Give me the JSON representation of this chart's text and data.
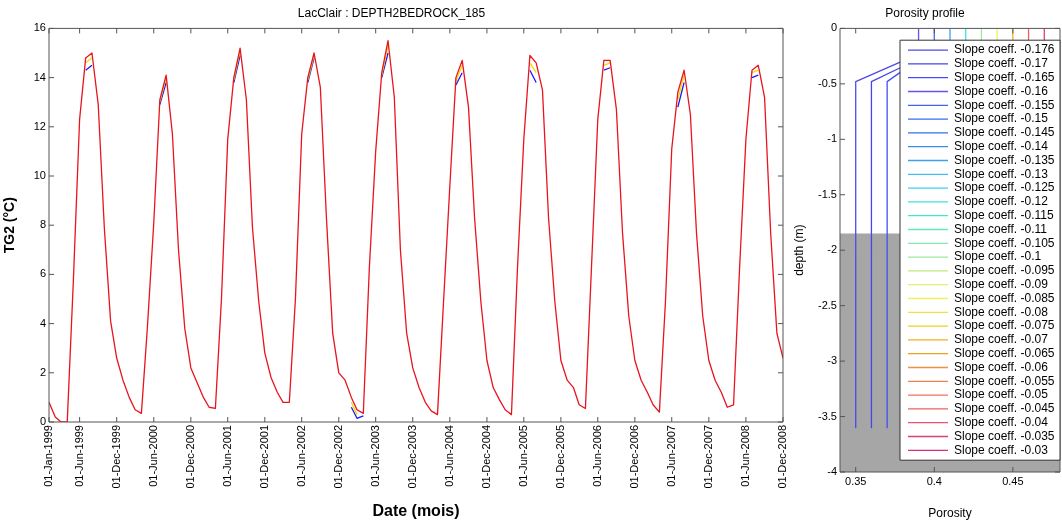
{
  "chart_data": [
    {
      "type": "line",
      "title": "LacClair : DEPTH2BEDROCK_185",
      "xlabel": "Date (mois)",
      "ylabel": "TG2 (°C)",
      "marker": "none",
      "line_style": "solid",
      "x": [
        "1999-01",
        "1999-02",
        "1999-03",
        "1999-04",
        "1999-05",
        "1999-06",
        "1999-07",
        "1999-08",
        "1999-09",
        "1999-10",
        "1999-11",
        "1999-12",
        "2000-01",
        "2000-02",
        "2000-03",
        "2000-04",
        "2000-05",
        "2000-06",
        "2000-07",
        "2000-08",
        "2000-09",
        "2000-10",
        "2000-11",
        "2000-12",
        "2001-01",
        "2001-02",
        "2001-03",
        "2001-04",
        "2001-05",
        "2001-06",
        "2001-07",
        "2001-08",
        "2001-09",
        "2001-10",
        "2001-11",
        "2001-12",
        "2002-01",
        "2002-02",
        "2002-03",
        "2002-04",
        "2002-05",
        "2002-06",
        "2002-07",
        "2002-08",
        "2002-09",
        "2002-10",
        "2002-11",
        "2002-12",
        "2003-01",
        "2003-02",
        "2003-03",
        "2003-04",
        "2003-05",
        "2003-06",
        "2003-07",
        "2003-08",
        "2003-09",
        "2003-10",
        "2003-11",
        "2003-12",
        "2004-01",
        "2004-02",
        "2004-03",
        "2004-04",
        "2004-05",
        "2004-06",
        "2004-07",
        "2004-08",
        "2004-09",
        "2004-10",
        "2004-11",
        "2004-12",
        "2005-01",
        "2005-02",
        "2005-03",
        "2005-04",
        "2005-05",
        "2005-06",
        "2005-07",
        "2005-08",
        "2005-09",
        "2005-10",
        "2005-11",
        "2005-12",
        "2006-01",
        "2006-02",
        "2006-03",
        "2006-04",
        "2006-05",
        "2006-06",
        "2006-07",
        "2006-08",
        "2006-09",
        "2006-10",
        "2006-11",
        "2006-12",
        "2007-01",
        "2007-02",
        "2007-03",
        "2007-04",
        "2007-05",
        "2007-06",
        "2007-07",
        "2007-08",
        "2007-09",
        "2007-10",
        "2007-11",
        "2007-12",
        "2008-01",
        "2008-02",
        "2008-03",
        "2008-04",
        "2008-05",
        "2008-06",
        "2008-07",
        "2008-08",
        "2008-09",
        "2008-10",
        "2008-11",
        "2008-12"
      ],
      "series": [
        {
          "color": "#e8141e",
          "values": [
            0.8,
            0.2,
            0,
            0,
            5.7,
            12.3,
            14.8,
            15.0,
            12.9,
            7.9,
            4.1,
            2.6,
            1.7,
            1.0,
            0.5,
            0.35,
            3.9,
            8.1,
            13.1,
            14.1,
            11.7,
            7.0,
            3.8,
            2.2,
            1.6,
            1.0,
            0.6,
            0.55,
            5.0,
            11.5,
            14.0,
            15.2,
            13.1,
            7.9,
            4.9,
            2.8,
            1.8,
            1.2,
            0.8,
            0.8,
            5.0,
            11.7,
            14.0,
            15.0,
            13.6,
            8.3,
            3.6,
            2.0,
            1.7,
            1.0,
            0.5,
            0.35,
            6.3,
            11.0,
            14.2,
            15.5,
            13.2,
            7.0,
            3.6,
            2.2,
            1.4,
            0.8,
            0.45,
            0.3,
            4.9,
            9.6,
            14.0,
            14.7,
            12.8,
            8.3,
            4.9,
            2.5,
            1.4,
            0.9,
            0.5,
            0.3,
            6.3,
            11.5,
            14.9,
            14.6,
            13.5,
            8.3,
            4.9,
            2.5,
            1.7,
            1.4,
            0.7,
            0.55,
            6.3,
            12.3,
            14.7,
            14.7,
            12.7,
            7.7,
            4.3,
            2.5,
            1.7,
            1.2,
            0.7,
            0.4,
            4.9,
            11.1,
            13.4,
            14.3,
            12.5,
            7.7,
            4.3,
            2.5,
            1.7,
            1.2,
            0.6,
            0.7,
            6.3,
            11.5,
            14.3,
            14.5,
            13.2,
            7.7,
            3.6,
            2.6
          ]
        },
        {
          "color": "#f5d800",
          "values": [
            null,
            null,
            null,
            null,
            null,
            null,
            14.6,
            14.8,
            null,
            null,
            null,
            null,
            null,
            null,
            null,
            null,
            null,
            null,
            13.0,
            14.0,
            null,
            null,
            null,
            null,
            null,
            null,
            null,
            null,
            null,
            null,
            13.9,
            15.1,
            null,
            null,
            null,
            null,
            null,
            null,
            null,
            null,
            null,
            null,
            13.9,
            14.9,
            null,
            null,
            null,
            null,
            null,
            0.8,
            0.3,
            null,
            null,
            null,
            14.1,
            15.3,
            null,
            null,
            null,
            null,
            null,
            null,
            null,
            null,
            null,
            null,
            13.85,
            14.5,
            null,
            null,
            null,
            null,
            null,
            null,
            null,
            null,
            null,
            null,
            14.6,
            14.2,
            null,
            null,
            null,
            null,
            null,
            null,
            null,
            null,
            null,
            null,
            14.5,
            14.6,
            null,
            null,
            null,
            null,
            null,
            null,
            null,
            null,
            null,
            null,
            13.1,
            14.1,
            null,
            null,
            null,
            null,
            null,
            null,
            null,
            null,
            null,
            null,
            14.2,
            14.3,
            null,
            null,
            null,
            null
          ]
        },
        {
          "color": "#1a1aff",
          "values": [
            null,
            null,
            null,
            null,
            null,
            null,
            14.3,
            14.5,
            null,
            null,
            null,
            null,
            null,
            null,
            null,
            null,
            null,
            null,
            12.9,
            13.8,
            null,
            null,
            null,
            null,
            null,
            null,
            null,
            null,
            null,
            null,
            13.8,
            14.9,
            null,
            null,
            null,
            null,
            null,
            null,
            null,
            null,
            null,
            null,
            13.8,
            14.8,
            null,
            null,
            null,
            null,
            null,
            0.6,
            0.15,
            0.25,
            null,
            null,
            14.0,
            15.0,
            null,
            null,
            null,
            null,
            null,
            null,
            null,
            null,
            null,
            null,
            13.7,
            14.2,
            null,
            null,
            null,
            null,
            null,
            null,
            null,
            null,
            null,
            null,
            14.3,
            13.8,
            null,
            null,
            null,
            null,
            null,
            null,
            null,
            null,
            null,
            null,
            14.3,
            14.4,
            null,
            null,
            null,
            null,
            null,
            null,
            null,
            null,
            null,
            null,
            12.8,
            13.8,
            null,
            null,
            null,
            null,
            null,
            null,
            null,
            null,
            null,
            null,
            14.0,
            14.1,
            null,
            null,
            null,
            null
          ]
        }
      ],
      "xlim": [
        "1999-01-01",
        "2008-12-01"
      ],
      "xticks": [
        {
          "value": "1999-01-01",
          "label": "01-Jan-1999"
        },
        {
          "value": "1999-06-01",
          "label": "01-Jun-1999"
        },
        {
          "value": "1999-12-01",
          "label": "01-Dec-1999"
        },
        {
          "value": "2000-06-01",
          "label": "01-Jun-2000"
        },
        {
          "value": "2000-12-01",
          "label": "01-Dec-2000"
        },
        {
          "value": "2001-06-01",
          "label": "01-Jun-2001"
        },
        {
          "value": "2001-12-01",
          "label": "01-Dec-2001"
        },
        {
          "value": "2002-06-01",
          "label": "01-Jun-2002"
        },
        {
          "value": "2002-12-01",
          "label": "01-Dec-2002"
        },
        {
          "value": "2003-06-01",
          "label": "01-Jun-2003"
        },
        {
          "value": "2003-12-01",
          "label": "01-Dec-2003"
        },
        {
          "value": "2004-06-01",
          "label": "01-Jun-2004"
        },
        {
          "value": "2004-12-01",
          "label": "01-Dec-2004"
        },
        {
          "value": "2005-06-01",
          "label": "01-Jun-2005"
        },
        {
          "value": "2005-12-01",
          "label": "01-Dec-2005"
        },
        {
          "value": "2006-06-01",
          "label": "01-Jun-2006"
        },
        {
          "value": "2006-12-01",
          "label": "01-Dec-2006"
        },
        {
          "value": "2007-06-01",
          "label": "01-Jun-2007"
        },
        {
          "value": "2007-12-01",
          "label": "01-Dec-2007"
        },
        {
          "value": "2008-06-01",
          "label": "01-Jun-2008"
        },
        {
          "value": "2008-12-01",
          "label": "01-Dec-2008"
        }
      ],
      "ylim": [
        0,
        16
      ],
      "yticks": [
        0,
        2,
        4,
        6,
        8,
        10,
        12,
        14,
        16
      ]
    },
    {
      "type": "line",
      "title": "Porosity profile",
      "xlabel": "Porosity",
      "ylabel": "depth (m)",
      "marker": "none",
      "line_style": "solid",
      "legend": "right",
      "xlim": [
        0.34,
        0.48
      ],
      "xticks": [
        0.35,
        0.4,
        0.45
      ],
      "ylim": [
        -4,
        0
      ],
      "yticks": [
        0,
        -0.5,
        -1,
        -1.5,
        -2,
        -2.5,
        -3,
        -3.5,
        -4
      ],
      "bands": [
        {
          "axis": "y",
          "from": -4,
          "to": -1.85,
          "color": "#a6a6a6"
        }
      ],
      "series": [
        {
          "name": "Slope coeff. -0.176",
          "color": "#4b4be6",
          "x": [
            0.379,
            0.35,
            0.35
          ],
          "values": [
            -0.3,
            -0.48,
            -3.6
          ]
        },
        {
          "name": "Slope coeff. -0.17",
          "color": "#4646ee",
          "x": [
            0.379,
            0.36,
            0.36
          ],
          "values": [
            -0.35,
            -0.48,
            -3.6
          ]
        },
        {
          "name": "Slope coeff. -0.165",
          "color": "#4050f5",
          "x": [
            0.379,
            0.37,
            0.37
          ],
          "values": [
            -0.39,
            -0.48,
            -3.6
          ]
        },
        {
          "name": "Slope coeff. -0.16",
          "color": "#6a50f0",
          "x": [
            0.39,
            0.39
          ],
          "values": [
            0,
            -0.13
          ]
        },
        {
          "name": "Slope coeff. -0.155",
          "color": "#4060f0"
        },
        {
          "name": "Slope coeff. -0.15",
          "color": "#3a6af0",
          "x": [
            0.4,
            0.4
          ],
          "values": [
            0,
            -0.13
          ]
        },
        {
          "name": "Slope coeff. -0.145",
          "color": "#3070f0"
        },
        {
          "name": "Slope coeff. -0.14",
          "color": "#3a8af0"
        },
        {
          "name": "Slope coeff. -0.135",
          "color": "#40a0f0",
          "x": [
            0.41,
            0.41
          ],
          "values": [
            0,
            -0.13
          ]
        },
        {
          "name": "Slope coeff. -0.13",
          "color": "#40c0f0"
        },
        {
          "name": "Slope coeff. -0.125",
          "color": "#40d0f0"
        },
        {
          "name": "Slope coeff. -0.12",
          "color": "#40e0e0",
          "x": [
            0.42,
            0.42
          ],
          "values": [
            0,
            -0.13
          ]
        },
        {
          "name": "Slope coeff. -0.115",
          "color": "#40e8c8"
        },
        {
          "name": "Slope coeff. -0.11",
          "color": "#60e8c0"
        },
        {
          "name": "Slope coeff. -0.105",
          "color": "#80e8b0"
        },
        {
          "name": "Slope coeff. -0.1",
          "color": "#a0e8a0",
          "x": [
            0.43,
            0.43
          ],
          "values": [
            0,
            -0.13
          ]
        },
        {
          "name": "Slope coeff. -0.095",
          "color": "#c0e880"
        },
        {
          "name": "Slope coeff. -0.09",
          "color": "#e0f070"
        },
        {
          "name": "Slope coeff. -0.085",
          "color": "#f0f060",
          "x": [
            0.44,
            0.44
          ],
          "values": [
            0,
            -0.13
          ]
        },
        {
          "name": "Slope coeff. -0.08",
          "color": "#f0e040"
        },
        {
          "name": "Slope coeff. -0.075",
          "color": "#f0d020"
        },
        {
          "name": "Slope coeff. -0.07",
          "color": "#f0b020",
          "x": [
            0.45,
            0.45
          ],
          "values": [
            0,
            -0.13
          ]
        },
        {
          "name": "Slope coeff. -0.065",
          "color": "#f0a020"
        },
        {
          "name": "Slope coeff. -0.06",
          "color": "#f09040"
        },
        {
          "name": "Slope coeff. -0.055",
          "color": "#f08050"
        },
        {
          "name": "Slope coeff. -0.05",
          "color": "#f07060"
        },
        {
          "name": "Slope coeff. -0.045",
          "color": "#f06060",
          "x": [
            0.46,
            0.46
          ],
          "values": [
            0,
            -0.13
          ]
        },
        {
          "name": "Slope coeff. -0.04",
          "color": "#f05070"
        },
        {
          "name": "Slope coeff. -0.035",
          "color": "#e04070",
          "x": [
            0.47,
            0.47
          ],
          "values": [
            0,
            -0.13
          ]
        },
        {
          "name": "Slope coeff. -0.03",
          "color": "#d03080"
        }
      ]
    }
  ]
}
